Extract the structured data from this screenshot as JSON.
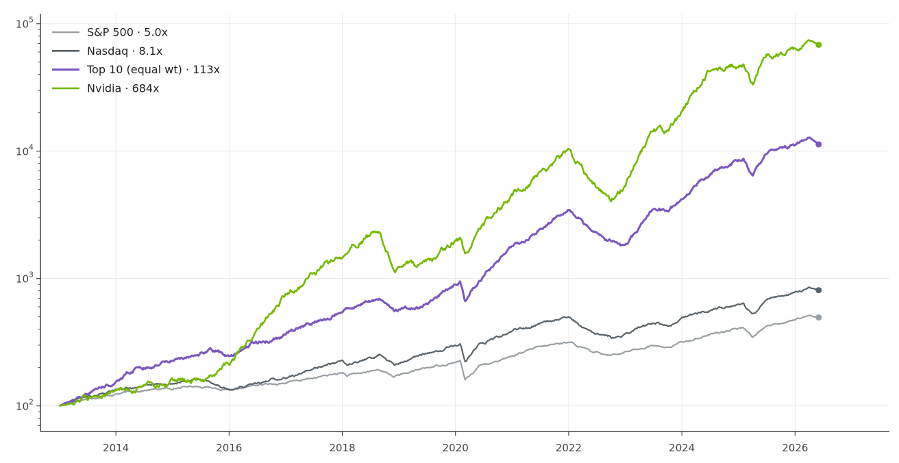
{
  "chart_data": {
    "type": "line",
    "title": "",
    "xlabel": "",
    "ylabel": "",
    "y_scale": "log",
    "ylim": [
      63,
      120000
    ],
    "xlim": [
      "2012-09",
      "2027-09"
    ],
    "grid": true,
    "legend_position": "top-left",
    "x_ticks": [
      "2014",
      "2016",
      "2018",
      "2020",
      "2022",
      "2024",
      "2026"
    ],
    "y_ticks": [
      {
        "value": 100,
        "base": "10",
        "exp": "2"
      },
      {
        "value": 1000,
        "base": "10",
        "exp": "3"
      },
      {
        "value": 10000,
        "base": "10",
        "exp": "4"
      },
      {
        "value": 100000,
        "base": "10",
        "exp": "5"
      }
    ],
    "series": [
      {
        "name": "S&P 500",
        "multiple": "5.0x",
        "color": "#9aa0a6",
        "points": [
          [
            "2013-01",
            100
          ],
          [
            "2013-06",
            113
          ],
          [
            "2014-01",
            124
          ],
          [
            "2014-06",
            132
          ],
          [
            "2015-01",
            138
          ],
          [
            "2015-06",
            144
          ],
          [
            "2015-09",
            140
          ],
          [
            "2016-02",
            131
          ],
          [
            "2016-06",
            144
          ],
          [
            "2017-01",
            152
          ],
          [
            "2017-06",
            163
          ],
          [
            "2018-01",
            182
          ],
          [
            "2018-02",
            172
          ],
          [
            "2018-09",
            193
          ],
          [
            "2018-12",
            170
          ],
          [
            "2019-06",
            196
          ],
          [
            "2020-02",
            225
          ],
          [
            "2020-03",
            160
          ],
          [
            "2020-06",
            205
          ],
          [
            "2021-01",
            248
          ],
          [
            "2021-06",
            283
          ],
          [
            "2022-01",
            320
          ],
          [
            "2022-06",
            262
          ],
          [
            "2022-10",
            255
          ],
          [
            "2023-01",
            265
          ],
          [
            "2023-07",
            300
          ],
          [
            "2023-10",
            285
          ],
          [
            "2024-01",
            315
          ],
          [
            "2024-07",
            365
          ],
          [
            "2025-02",
            410
          ],
          [
            "2025-04",
            350
          ],
          [
            "2025-07",
            430
          ],
          [
            "2026-01",
            475
          ],
          [
            "2026-04",
            510
          ],
          [
            "2026-06",
            495
          ]
        ]
      },
      {
        "name": "Nasdaq",
        "multiple": "8.1x",
        "color": "#59636b",
        "points": [
          [
            "2013-01",
            100
          ],
          [
            "2013-06",
            116
          ],
          [
            "2014-01",
            134
          ],
          [
            "2014-06",
            142
          ],
          [
            "2015-01",
            150
          ],
          [
            "2015-06",
            162
          ],
          [
            "2015-09",
            152
          ],
          [
            "2016-02",
            135
          ],
          [
            "2016-06",
            150
          ],
          [
            "2017-01",
            165
          ],
          [
            "2017-06",
            190
          ],
          [
            "2018-01",
            225
          ],
          [
            "2018-02",
            212
          ],
          [
            "2018-09",
            255
          ],
          [
            "2018-12",
            210
          ],
          [
            "2019-06",
            255
          ],
          [
            "2020-02",
            305
          ],
          [
            "2020-03",
            222
          ],
          [
            "2020-06",
            300
          ],
          [
            "2021-01",
            385
          ],
          [
            "2021-06",
            430
          ],
          [
            "2022-01",
            500
          ],
          [
            "2022-06",
            370
          ],
          [
            "2022-10",
            345
          ],
          [
            "2023-01",
            360
          ],
          [
            "2023-07",
            450
          ],
          [
            "2023-10",
            420
          ],
          [
            "2024-01",
            495
          ],
          [
            "2024-07",
            570
          ],
          [
            "2025-02",
            630
          ],
          [
            "2025-04",
            515
          ],
          [
            "2025-07",
            680
          ],
          [
            "2026-01",
            760
          ],
          [
            "2026-04",
            860
          ],
          [
            "2026-06",
            810
          ]
        ]
      },
      {
        "name": "Top 10 (equal wt)",
        "multiple": "113x",
        "color": "#7b57c2",
        "points": [
          [
            "2013-01",
            100
          ],
          [
            "2013-06",
            120
          ],
          [
            "2014-01",
            155
          ],
          [
            "2014-06",
            200
          ],
          [
            "2015-01",
            228
          ],
          [
            "2015-06",
            245
          ],
          [
            "2015-09",
            272
          ],
          [
            "2016-02",
            250
          ],
          [
            "2016-06",
            310
          ],
          [
            "2017-01",
            360
          ],
          [
            "2017-06",
            435
          ],
          [
            "2018-01",
            560
          ],
          [
            "2018-02",
            590
          ],
          [
            "2018-09",
            700
          ],
          [
            "2018-12",
            565
          ],
          [
            "2019-06",
            610
          ],
          [
            "2020-02",
            950
          ],
          [
            "2020-03",
            680
          ],
          [
            "2020-06",
            970
          ],
          [
            "2021-01",
            1750
          ],
          [
            "2021-06",
            2300
          ],
          [
            "2022-01",
            3500
          ],
          [
            "2022-06",
            2400
          ],
          [
            "2022-10",
            2000
          ],
          [
            "2023-01",
            1750
          ],
          [
            "2023-07",
            3500
          ],
          [
            "2023-10",
            3300
          ],
          [
            "2024-01",
            4200
          ],
          [
            "2024-07",
            6800
          ],
          [
            "2025-02",
            8800
          ],
          [
            "2025-04",
            6300
          ],
          [
            "2025-07",
            9800
          ],
          [
            "2026-01",
            11000
          ],
          [
            "2026-04",
            12800
          ],
          [
            "2026-06",
            11300
          ]
        ]
      },
      {
        "name": "Nvidia",
        "multiple": "684x",
        "color": "#76b900",
        "points": [
          [
            "2013-01",
            100
          ],
          [
            "2013-06",
            110
          ],
          [
            "2014-01",
            125
          ],
          [
            "2014-06",
            140
          ],
          [
            "2015-01",
            150
          ],
          [
            "2015-06",
            160
          ],
          [
            "2015-09",
            175
          ],
          [
            "2016-02",
            240
          ],
          [
            "2016-06",
            350
          ],
          [
            "2017-01",
            720
          ],
          [
            "2017-06",
            1000
          ],
          [
            "2018-01",
            1600
          ],
          [
            "2018-02",
            1800
          ],
          [
            "2018-09",
            2300
          ],
          [
            "2018-12",
            1200
          ],
          [
            "2019-06",
            1300
          ],
          [
            "2020-02",
            2000
          ],
          [
            "2020-03",
            1500
          ],
          [
            "2020-06",
            2400
          ],
          [
            "2021-01",
            4500
          ],
          [
            "2021-06",
            6200
          ],
          [
            "2022-01",
            10000
          ],
          [
            "2022-06",
            5800
          ],
          [
            "2022-10",
            4000
          ],
          [
            "2023-01",
            5500
          ],
          [
            "2023-07",
            15000
          ],
          [
            "2023-10",
            14000
          ],
          [
            "2024-01",
            20000
          ],
          [
            "2024-07",
            45000
          ],
          [
            "2025-02",
            48000
          ],
          [
            "2025-04",
            33000
          ],
          [
            "2025-07",
            58000
          ],
          [
            "2026-01",
            62000
          ],
          [
            "2026-04",
            76000
          ],
          [
            "2026-06",
            68400
          ]
        ]
      }
    ]
  }
}
